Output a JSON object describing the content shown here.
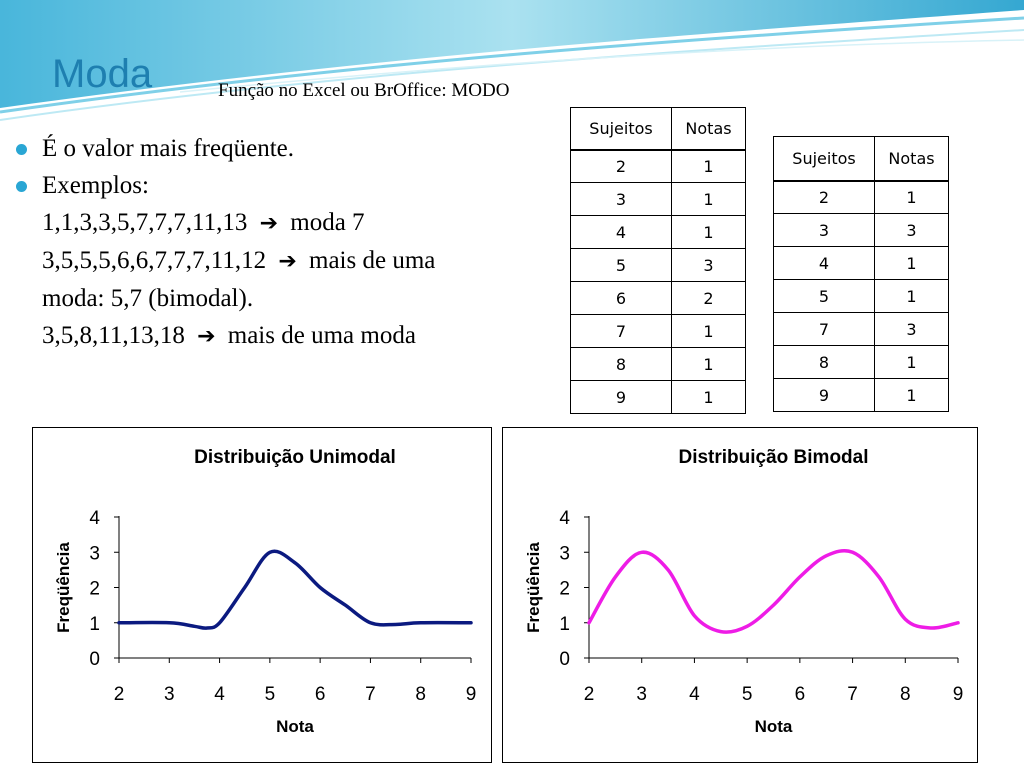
{
  "slide": {
    "title": "Moda",
    "subtitle": "Função no Excel ou BrOffice: MODO",
    "bullets": [
      {
        "text": "É o valor mais freqüente."
      },
      {
        "text": "Exemplos:"
      }
    ],
    "examples": [
      {
        "pre": "1,1,3,3,5,7,7,7,11,13",
        "post": "moda 7"
      },
      {
        "pre": "3,5,5,5,6,6,7,7,7,11,12",
        "post": "mais de uma"
      },
      {
        "pre": "moda: 5,7 (bimodal).",
        "post": ""
      },
      {
        "pre": "3,5,8,11,13,18",
        "post": "mais de uma moda"
      }
    ],
    "accent_color": "#1e7fb0",
    "bullet_color": "#29a6d4"
  },
  "tables": [
    {
      "headers": [
        "Sujeitos",
        "Notas"
      ],
      "rows": [
        [
          "2",
          "1"
        ],
        [
          "3",
          "1"
        ],
        [
          "4",
          "1"
        ],
        [
          "5",
          "3"
        ],
        [
          "6",
          "2"
        ],
        [
          "7",
          "1"
        ],
        [
          "8",
          "1"
        ],
        [
          "9",
          "1"
        ]
      ]
    },
    {
      "headers": [
        "Sujeitos",
        "Notas"
      ],
      "rows": [
        [
          "2",
          "1"
        ],
        [
          "3",
          "3"
        ],
        [
          "4",
          "1"
        ],
        [
          "5",
          "1"
        ],
        [
          "7",
          "3"
        ],
        [
          "8",
          "1"
        ],
        [
          "9",
          "1"
        ]
      ]
    }
  ],
  "chart_data": [
    {
      "type": "line",
      "title": "Distribuição Unimodal",
      "xlabel": "Nota",
      "ylabel": "Freqüência",
      "xlim": [
        2,
        9
      ],
      "ylim": [
        0,
        4
      ],
      "xticks": [
        2,
        3,
        4,
        5,
        6,
        7,
        8,
        9
      ],
      "yticks": [
        0,
        1,
        2,
        3,
        4
      ],
      "grid": false,
      "series": [
        {
          "color": "#0b1a80",
          "x": [
            2,
            3,
            3.5,
            3.75,
            4,
            4.5,
            5,
            5.5,
            6,
            6.5,
            7,
            7.5,
            8,
            9
          ],
          "y": [
            1,
            1,
            0.9,
            0.85,
            1,
            2,
            3,
            2.7,
            2,
            1.5,
            1,
            0.95,
            1,
            1
          ]
        }
      ]
    },
    {
      "type": "line",
      "title": "Distribuição Bimodal",
      "xlabel": "Nota",
      "ylabel": "Freqüência",
      "xlim": [
        2,
        9
      ],
      "ylim": [
        0,
        4
      ],
      "xticks": [
        2,
        3,
        4,
        5,
        6,
        7,
        8,
        9
      ],
      "yticks": [
        0,
        1,
        2,
        3,
        4
      ],
      "grid": false,
      "series": [
        {
          "color": "#ee1ce6",
          "x": [
            2,
            2.5,
            3,
            3.5,
            4,
            4.5,
            5,
            5.5,
            6,
            6.5,
            7,
            7.5,
            8,
            8.5,
            9
          ],
          "y": [
            1,
            2.3,
            3,
            2.5,
            1.2,
            0.75,
            0.9,
            1.5,
            2.3,
            2.9,
            3,
            2.3,
            1.1,
            0.85,
            1
          ]
        }
      ]
    }
  ]
}
